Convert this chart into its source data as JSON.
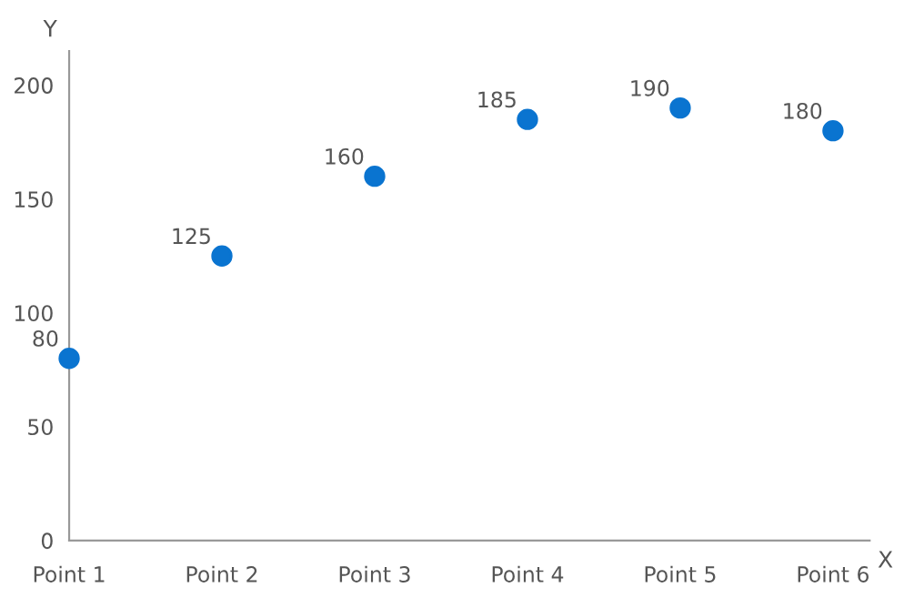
{
  "chart_data": {
    "type": "scatter",
    "xlabel": "X",
    "ylabel": "Y",
    "categories": [
      "Point 1",
      "Point 2",
      "Point 3",
      "Point 4",
      "Point 5",
      "Point 6"
    ],
    "series": [
      {
        "color": "#0a74d0",
        "values": [
          80,
          125,
          160,
          185,
          190,
          180
        ]
      }
    ],
    "ylim": [
      0,
      215
    ],
    "yticks": [
      0,
      50,
      100,
      150,
      200
    ],
    "data_labels": true,
    "grid": false,
    "marker": "circle"
  }
}
